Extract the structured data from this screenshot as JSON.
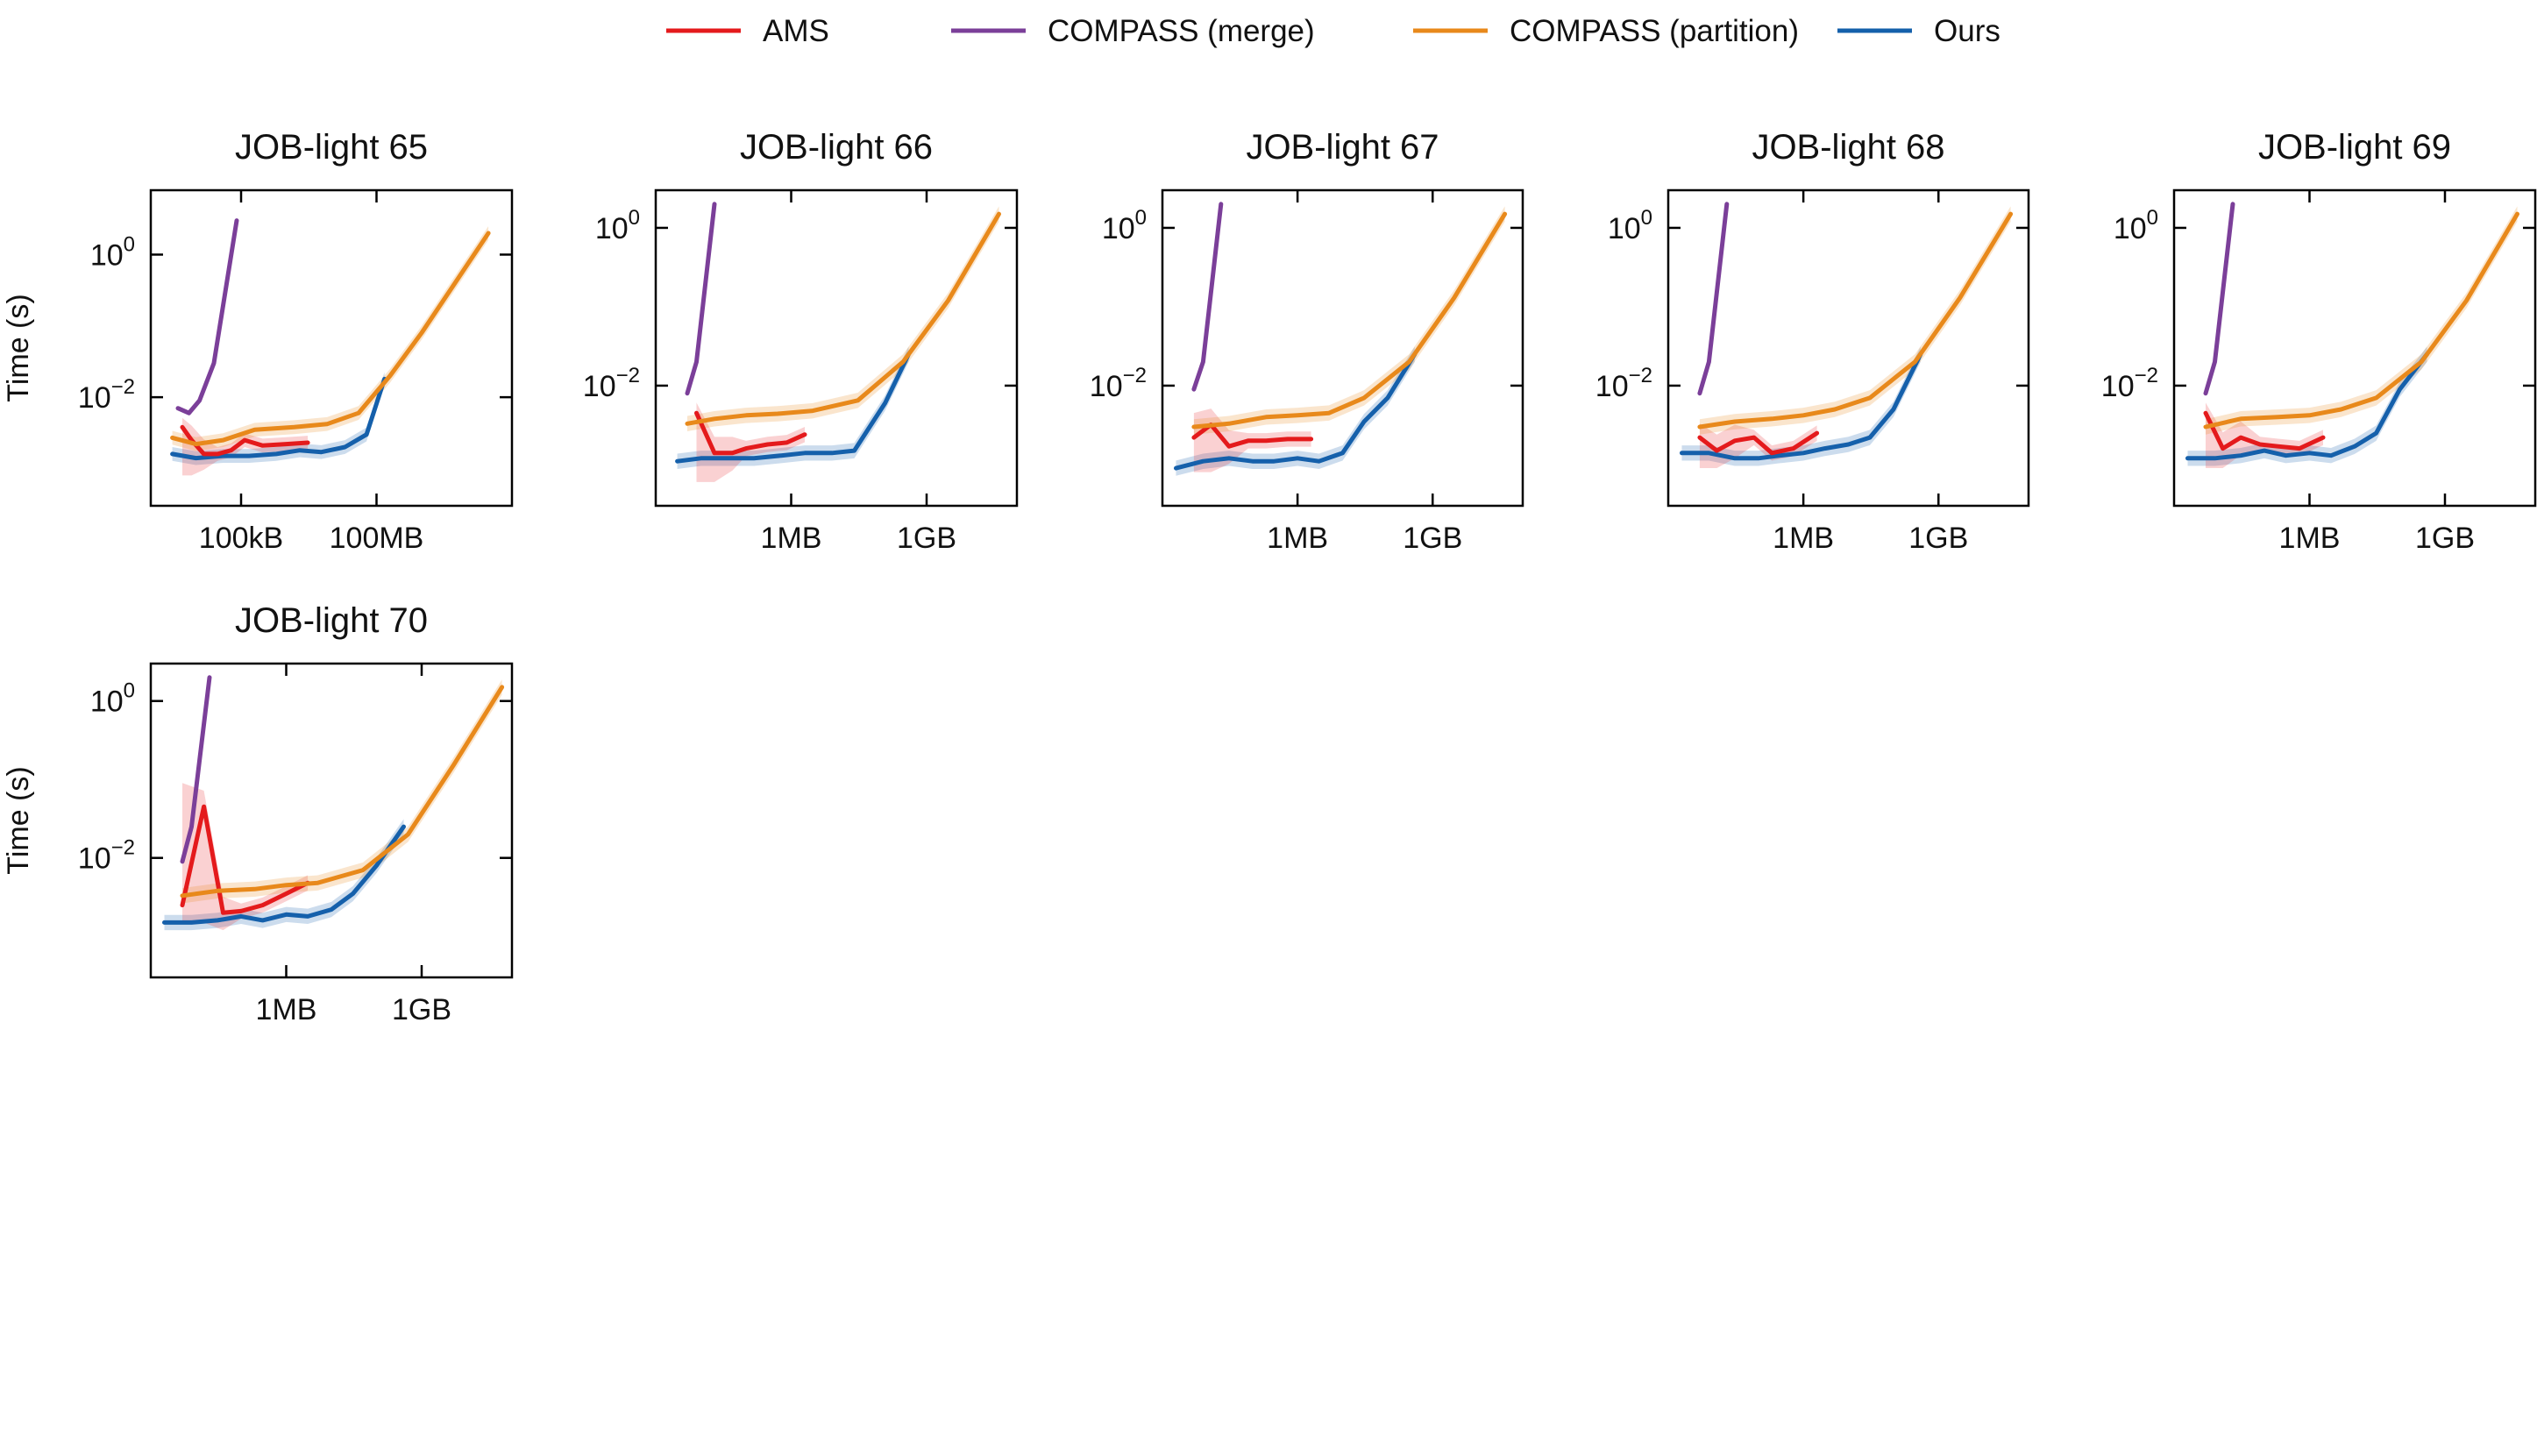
{
  "figure": {
    "legend": [
      {
        "name": "AMS",
        "color": "#e41a1c"
      },
      {
        "name": "COMPASS (merge)",
        "color": "#7b3f99"
      },
      {
        "name": "COMPASS (partition)",
        "color": "#e8891b"
      },
      {
        "name": "Ours",
        "color": "#1560ab"
      }
    ]
  },
  "chart_data": [
    {
      "type": "line",
      "title": "JOB-light 65",
      "ylabel": "Time (s)",
      "xlabel": "",
      "xscale": "log",
      "yscale": "log",
      "xlim": [
        1000,
        100000000000
      ],
      "ylim": [
        0.0003,
        8
      ],
      "xticks": [
        {
          "v": 100000,
          "label": "100kB"
        },
        {
          "v": 100000000,
          "label": "100MB"
        }
      ],
      "yticks": [
        {
          "v": 1,
          "base": "10",
          "exp": "0"
        },
        {
          "v": 0.01,
          "base": "10",
          "exp": "−2"
        }
      ],
      "series": [
        {
          "name": "COMPASS (merge)",
          "x": [
            4000,
            7000,
            12000,
            25000,
            80000
          ],
          "y": [
            0.007,
            0.006,
            0.009,
            0.03,
            3.0
          ]
        },
        {
          "name": "COMPASS (partition)",
          "x": [
            3000,
            10000,
            40000,
            200000,
            1500000,
            8000000,
            40000000,
            200000000,
            1000000000,
            30000000000
          ],
          "y": [
            0.0027,
            0.0022,
            0.0025,
            0.0035,
            0.0038,
            0.0042,
            0.006,
            0.02,
            0.08,
            2.0
          ]
        },
        {
          "name": "AMS",
          "x": [
            5000,
            8000,
            15000,
            30000,
            60000,
            120000,
            300000,
            1000000,
            3000000
          ],
          "y": [
            0.0038,
            0.0025,
            0.0016,
            0.0016,
            0.0018,
            0.0025,
            0.0021,
            0.0022,
            0.0023
          ],
          "band": [
            0.0008,
            0.0046
          ]
        },
        {
          "name": "Ours",
          "x": [
            3000,
            10000,
            40000,
            150000,
            600000,
            2000000,
            6000000,
            20000000,
            60000000,
            150000000
          ],
          "y": [
            0.0016,
            0.0014,
            0.0015,
            0.0015,
            0.0016,
            0.0018,
            0.0017,
            0.002,
            0.003,
            0.018
          ]
        }
      ]
    },
    {
      "type": "line",
      "title": "JOB-light 66",
      "ylabel": "",
      "xlabel": "",
      "xscale": "log",
      "yscale": "log",
      "xlim": [
        1000,
        100000000000
      ],
      "ylim": [
        0.0003,
        3
      ],
      "xticks": [
        {
          "v": 1000000,
          "label": "1MB"
        },
        {
          "v": 1000000000,
          "label": "1GB"
        }
      ],
      "yticks": [
        {
          "v": 1,
          "base": "10",
          "exp": "0"
        },
        {
          "v": 0.01,
          "base": "10",
          "exp": "−2"
        }
      ],
      "series": [
        {
          "name": "COMPASS (merge)",
          "x": [
            5000,
            8000,
            20000
          ],
          "y": [
            0.008,
            0.02,
            2.0
          ]
        },
        {
          "name": "COMPASS (partition)",
          "x": [
            5000,
            20000,
            100000,
            500000,
            3000000,
            30000000,
            300000000,
            3000000000,
            40000000000
          ],
          "y": [
            0.0033,
            0.0038,
            0.0042,
            0.0044,
            0.0048,
            0.0065,
            0.02,
            0.12,
            1.5
          ]
        },
        {
          "name": "AMS",
          "x": [
            8000,
            20000,
            50000,
            100000,
            300000,
            800000,
            2000000
          ],
          "y": [
            0.0045,
            0.0014,
            0.0014,
            0.0016,
            0.0018,
            0.0019,
            0.0024
          ],
          "band": [
            0.0006,
            0.0052
          ]
        },
        {
          "name": "Ours",
          "x": [
            3000,
            10000,
            40000,
            150000,
            600000,
            2000000,
            8000000,
            25000000,
            120000000,
            400000000
          ],
          "y": [
            0.0011,
            0.0012,
            0.0012,
            0.0012,
            0.0013,
            0.0014,
            0.0014,
            0.0015,
            0.006,
            0.025
          ]
        }
      ]
    },
    {
      "type": "line",
      "title": "JOB-light 67",
      "ylabel": "",
      "xlabel": "",
      "xscale": "log",
      "yscale": "log",
      "xlim": [
        1000,
        100000000000
      ],
      "ylim": [
        0.0003,
        3
      ],
      "xticks": [
        {
          "v": 1000000,
          "label": "1MB"
        },
        {
          "v": 1000000000,
          "label": "1GB"
        }
      ],
      "yticks": [
        {
          "v": 1,
          "base": "10",
          "exp": "0"
        },
        {
          "v": 0.01,
          "base": "10",
          "exp": "−2"
        }
      ],
      "series": [
        {
          "name": "COMPASS (merge)",
          "x": [
            5000,
            8000,
            20000
          ],
          "y": [
            0.009,
            0.02,
            2.0
          ]
        },
        {
          "name": "COMPASS (partition)",
          "x": [
            5000,
            30000,
            200000,
            1000000,
            5000000,
            30000000,
            300000000,
            3000000000,
            40000000000
          ],
          "y": [
            0.003,
            0.0033,
            0.004,
            0.0042,
            0.0045,
            0.007,
            0.02,
            0.13,
            1.5
          ]
        },
        {
          "name": "AMS",
          "x": [
            5000,
            12000,
            30000,
            80000,
            200000,
            600000,
            2000000
          ],
          "y": [
            0.0022,
            0.0032,
            0.0017,
            0.002,
            0.002,
            0.0021,
            0.0021
          ],
          "band": [
            0.0008,
            0.0045
          ]
        },
        {
          "name": "Ours",
          "x": [
            2000,
            8000,
            30000,
            100000,
            300000,
            1000000,
            3000000,
            10000000,
            30000000,
            100000000,
            400000000
          ],
          "y": [
            0.0009,
            0.0011,
            0.0012,
            0.0011,
            0.0011,
            0.0012,
            0.0011,
            0.0014,
            0.0035,
            0.007,
            0.025
          ]
        }
      ]
    },
    {
      "type": "line",
      "title": "JOB-light 68",
      "ylabel": "",
      "xlabel": "",
      "xscale": "log",
      "yscale": "log",
      "xlim": [
        1000,
        100000000000
      ],
      "ylim": [
        0.0003,
        3
      ],
      "xticks": [
        {
          "v": 1000000,
          "label": "1MB"
        },
        {
          "v": 1000000000,
          "label": "1GB"
        }
      ],
      "yticks": [
        {
          "v": 1,
          "base": "10",
          "exp": "0"
        },
        {
          "v": 0.01,
          "base": "10",
          "exp": "−2"
        }
      ],
      "series": [
        {
          "name": "COMPASS (merge)",
          "x": [
            5000,
            8000,
            20000
          ],
          "y": [
            0.008,
            0.02,
            2.0
          ]
        },
        {
          "name": "COMPASS (partition)",
          "x": [
            5000,
            30000,
            200000,
            1000000,
            5000000,
            30000000,
            300000000,
            3000000000,
            40000000000
          ],
          "y": [
            0.003,
            0.0035,
            0.0038,
            0.0042,
            0.005,
            0.007,
            0.02,
            0.13,
            1.5
          ]
        },
        {
          "name": "AMS",
          "x": [
            5000,
            12000,
            30000,
            80000,
            200000,
            600000,
            2000000
          ],
          "y": [
            0.0022,
            0.0015,
            0.002,
            0.0022,
            0.0014,
            0.0016,
            0.0025
          ],
          "band": [
            0.0009,
            0.0033
          ]
        },
        {
          "name": "Ours",
          "x": [
            2000,
            8000,
            30000,
            100000,
            300000,
            1000000,
            3000000,
            10000000,
            30000000,
            100000000,
            400000000
          ],
          "y": [
            0.0014,
            0.0014,
            0.0012,
            0.0012,
            0.0013,
            0.0014,
            0.0016,
            0.0018,
            0.0022,
            0.005,
            0.025
          ]
        }
      ]
    },
    {
      "type": "line",
      "title": "JOB-light 69",
      "ylabel": "",
      "xlabel": "",
      "xscale": "log",
      "yscale": "log",
      "xlim": [
        1000,
        100000000000
      ],
      "ylim": [
        0.0003,
        3
      ],
      "xticks": [
        {
          "v": 1000000,
          "label": "1MB"
        },
        {
          "v": 1000000000,
          "label": "1GB"
        }
      ],
      "yticks": [
        {
          "v": 1,
          "base": "10",
          "exp": "0"
        },
        {
          "v": 0.01,
          "base": "10",
          "exp": "−2"
        }
      ],
      "series": [
        {
          "name": "COMPASS (merge)",
          "x": [
            5000,
            8000,
            20000
          ],
          "y": [
            0.008,
            0.02,
            2.0
          ]
        },
        {
          "name": "COMPASS (partition)",
          "x": [
            5000,
            30000,
            200000,
            1000000,
            5000000,
            30000000,
            300000000,
            3000000000,
            40000000000
          ],
          "y": [
            0.003,
            0.0038,
            0.004,
            0.0042,
            0.005,
            0.007,
            0.02,
            0.12,
            1.5
          ]
        },
        {
          "name": "AMS",
          "x": [
            5000,
            12000,
            30000,
            80000,
            200000,
            600000,
            2000000
          ],
          "y": [
            0.0045,
            0.0016,
            0.0022,
            0.0018,
            0.0017,
            0.0016,
            0.0022
          ],
          "band": [
            0.0009,
            0.0055
          ]
        },
        {
          "name": "Ours",
          "x": [
            2000,
            8000,
            30000,
            100000,
            300000,
            1000000,
            3000000,
            10000000,
            30000000,
            100000000,
            400000000
          ],
          "y": [
            0.0012,
            0.0012,
            0.0013,
            0.0015,
            0.0013,
            0.0014,
            0.0013,
            0.0017,
            0.0025,
            0.009,
            0.025
          ]
        }
      ]
    },
    {
      "type": "line",
      "title": "JOB-light 70",
      "ylabel": "Time (s)",
      "xlabel": "",
      "xscale": "log",
      "yscale": "log",
      "xlim": [
        1000,
        100000000000
      ],
      "ylim": [
        0.0003,
        3
      ],
      "xticks": [
        {
          "v": 1000000,
          "label": "1MB"
        },
        {
          "v": 1000000000,
          "label": "1GB"
        }
      ],
      "yticks": [
        {
          "v": 1,
          "base": "10",
          "exp": "0"
        },
        {
          "v": 0.01,
          "base": "10",
          "exp": "−2"
        }
      ],
      "series": [
        {
          "name": "COMPASS (merge)",
          "x": [
            5000,
            8000,
            20000
          ],
          "y": [
            0.009,
            0.025,
            2.0
          ]
        },
        {
          "name": "COMPASS (partition)",
          "x": [
            5000,
            30000,
            200000,
            1000000,
            5000000,
            50000000,
            500000000,
            5000000000,
            60000000000
          ],
          "y": [
            0.0033,
            0.0038,
            0.004,
            0.0045,
            0.0048,
            0.007,
            0.02,
            0.15,
            1.5
          ]
        },
        {
          "name": "AMS",
          "x": [
            5000,
            15000,
            40000,
            100000,
            300000,
            1000000,
            3000000
          ],
          "y": [
            0.0025,
            0.045,
            0.002,
            0.0021,
            0.0025,
            0.0035,
            0.0048
          ],
          "band": [
            0.0015,
            0.09
          ]
        },
        {
          "name": "Ours",
          "x": [
            2000,
            8000,
            30000,
            100000,
            300000,
            1000000,
            3000000,
            10000000,
            30000000,
            100000000,
            400000000
          ],
          "y": [
            0.0015,
            0.0015,
            0.0016,
            0.0018,
            0.0016,
            0.0019,
            0.0018,
            0.0022,
            0.0035,
            0.008,
            0.025
          ]
        }
      ]
    }
  ]
}
